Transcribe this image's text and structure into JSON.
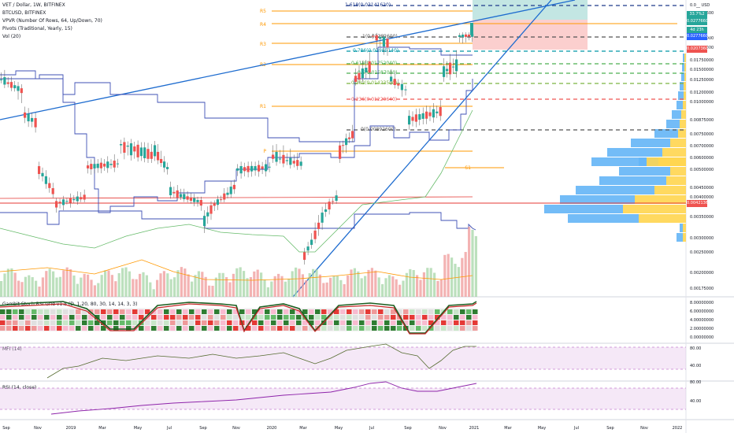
{
  "header": {
    "symbol_line": "VET / Dollar, 1W, BITFINEX",
    "compare_symbol": "BTCUSD, BITFINEX",
    "indicators": [
      "VPVR (Number Of Rows, 64, Up/Down, 70)",
      "Pivots (Traditional, Yearly, 15)",
      "Vol (20)"
    ]
  },
  "panes": {
    "stoch_label": "Gambit Stoch RSI Grid v1.5 (D, 1,20, 80, 30, 14, 14, 3, 3)",
    "mfi_label": "MFI (14)",
    "rsi_label": "RSI (14, close)"
  },
  "price_axis": {
    "labels": [
      "0.0__ USD",
      "0.02777600",
      "0.02500000",
      "0.02000000",
      "0.01750000",
      "0.01500000",
      "0.01250000",
      "0.01200000",
      "0.01000000",
      "0.00875000",
      "0.00750000",
      "0.00700000",
      "0.00600000",
      "0.00500000",
      "0.00450000",
      "0.00400000",
      "0.00350000",
      "0.00300000",
      "0.00250000",
      "0.00200000",
      "0.00175000"
    ],
    "tags": [
      {
        "text": "33.7%2",
        "color": "#26a69a"
      },
      {
        "text": "0.02776600",
        "color": "#26a69a"
      },
      {
        "text": "4d 23h",
        "color": "#26a69a"
      },
      {
        "text": "0.02776600",
        "color": "#2962ff"
      },
      {
        "text": "0.02073600",
        "color": "#ef5350"
      },
      {
        "text": "0.00421364",
        "color": "#ef5350"
      }
    ]
  },
  "stoch_axis": [
    "8.00000000",
    "6.00000000",
    "4.00000000",
    "2.00000000",
    "0.00000000"
  ],
  "mfi_axis": [
    "80.00",
    "40.00"
  ],
  "rsi_axis": [
    "80.00",
    "40.00"
  ],
  "time_axis": [
    "Sep",
    "Nov",
    "2019",
    "Mar",
    "May",
    "Jul",
    "Sep",
    "Nov",
    "2020",
    "Mar",
    "May",
    "Jul",
    "Sep",
    "Nov",
    "2021",
    "Mar",
    "May",
    "Jul",
    "Sep",
    "Nov",
    "2022"
  ],
  "fib_levels": [
    {
      "label": "1.618(0.03141620)",
      "color": "#1e3a8a"
    },
    {
      "label": "1(0.02282600)",
      "color": "#555555"
    },
    {
      "label": "0.786(0.01985140)",
      "color": "#0097a7"
    },
    {
      "label": "0.618(0.01752040)",
      "color": "#4caf50"
    },
    {
      "label": "0.5(0.01587000)",
      "color": "#4caf50"
    },
    {
      "label": "0.382(0.01423500)",
      "color": "#7cb342"
    },
    {
      "label": "0.236(0.01220640)",
      "color": "#ef5350"
    },
    {
      "label": "0(0.00892600)",
      "color": "#555555"
    }
  ],
  "pivot_labels": [
    "R5",
    "R4",
    "R3",
    "R2",
    "R1",
    "P",
    "S1"
  ],
  "chart_data": {
    "type": "candlestick",
    "title": "VET / Dollar, 1W, BITFINEX",
    "x_range": [
      "2018-09",
      "2022-01"
    ],
    "y_range": [
      0.0015,
      0.035
    ],
    "candles_sampled": [
      {
        "t": "2018-08",
        "o": 0.0165,
        "c": 0.015
      },
      {
        "t": "2018-10",
        "o": 0.0125,
        "c": 0.0105
      },
      {
        "t": "2018-11",
        "o": 0.0095,
        "c": 0.006
      },
      {
        "t": "2018-12",
        "o": 0.0045,
        "c": 0.004
      },
      {
        "t": "2019-02",
        "o": 0.0045,
        "c": 0.0062
      },
      {
        "t": "2019-04",
        "o": 0.0065,
        "c": 0.0076
      },
      {
        "t": "2019-06",
        "o": 0.007,
        "c": 0.0073
      },
      {
        "t": "2019-07",
        "o": 0.0058,
        "c": 0.0048
      },
      {
        "t": "2019-09",
        "o": 0.004,
        "c": 0.0034
      },
      {
        "t": "2019-11",
        "o": 0.0052,
        "c": 0.006
      },
      {
        "t": "2020-01",
        "o": 0.0062,
        "c": 0.007
      },
      {
        "t": "2020-03",
        "o": 0.0064,
        "c": 0.0024
      },
      {
        "t": "2020-05",
        "o": 0.0046,
        "c": 0.0072
      },
      {
        "t": "2020-06",
        "o": 0.009,
        "c": 0.015
      },
      {
        "t": "2020-07",
        "o": 0.017,
        "c": 0.021
      },
      {
        "t": "2020-08",
        "o": 0.019,
        "c": 0.015
      },
      {
        "t": "2020-09",
        "o": 0.0125,
        "c": 0.01
      },
      {
        "t": "2020-11",
        "o": 0.011,
        "c": 0.016
      },
      {
        "t": "2020-12",
        "o": 0.017,
        "c": 0.021
      },
      {
        "t": "2021-01",
        "o": 0.0215,
        "c": 0.0278
      }
    ]
  }
}
